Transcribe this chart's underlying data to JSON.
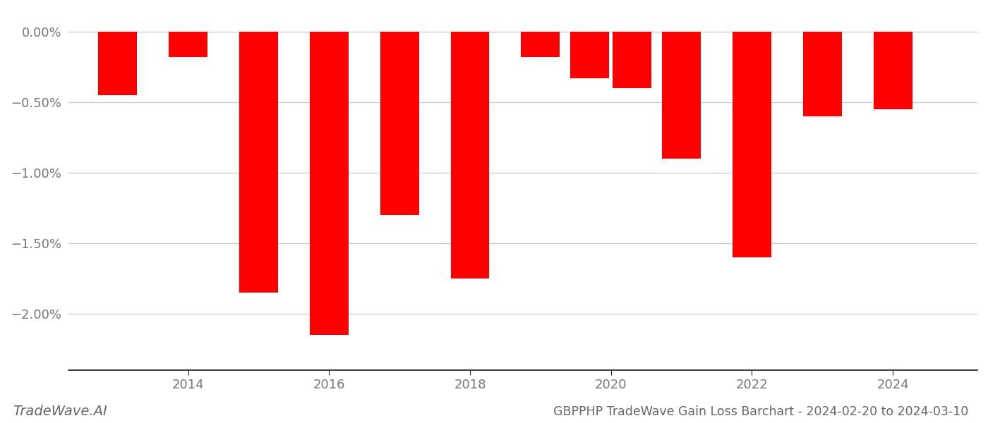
{
  "years": [
    2013,
    2014,
    2015,
    2016,
    2017,
    2018,
    2019,
    2019.7,
    2020.3,
    2021,
    2022,
    2023,
    2024
  ],
  "values": [
    -0.0045,
    -0.0018,
    -0.0185,
    -0.0215,
    -0.013,
    -0.0175,
    -0.0018,
    -0.0033,
    -0.004,
    -0.009,
    -0.016,
    -0.006,
    -0.0055
  ],
  "bar_color": "#ff0000",
  "background_color": "#ffffff",
  "grid_color": "#c8c8c8",
  "axis_color": "#1a1a1a",
  "title": "GBPPHP TradeWave Gain Loss Barchart - 2024-02-20 to 2024-03-10",
  "watermark": "TradeWave.AI",
  "ylim_min": -0.024,
  "ylim_max": 0.0015,
  "yticks": [
    0.0,
    -0.005,
    -0.01,
    -0.015,
    -0.02
  ],
  "ytick_labels": [
    "0.00%",
    "−0.50%",
    "−1.00%",
    "−1.50%",
    "−2.00%"
  ],
  "xticks": [
    2014,
    2016,
    2018,
    2020,
    2022,
    2024
  ],
  "xtick_labels": [
    "2014",
    "2016",
    "2018",
    "2020",
    "2022",
    "2024"
  ],
  "bar_width": 0.55,
  "title_fontsize": 12.5,
  "tick_fontsize": 13,
  "watermark_fontsize": 14
}
